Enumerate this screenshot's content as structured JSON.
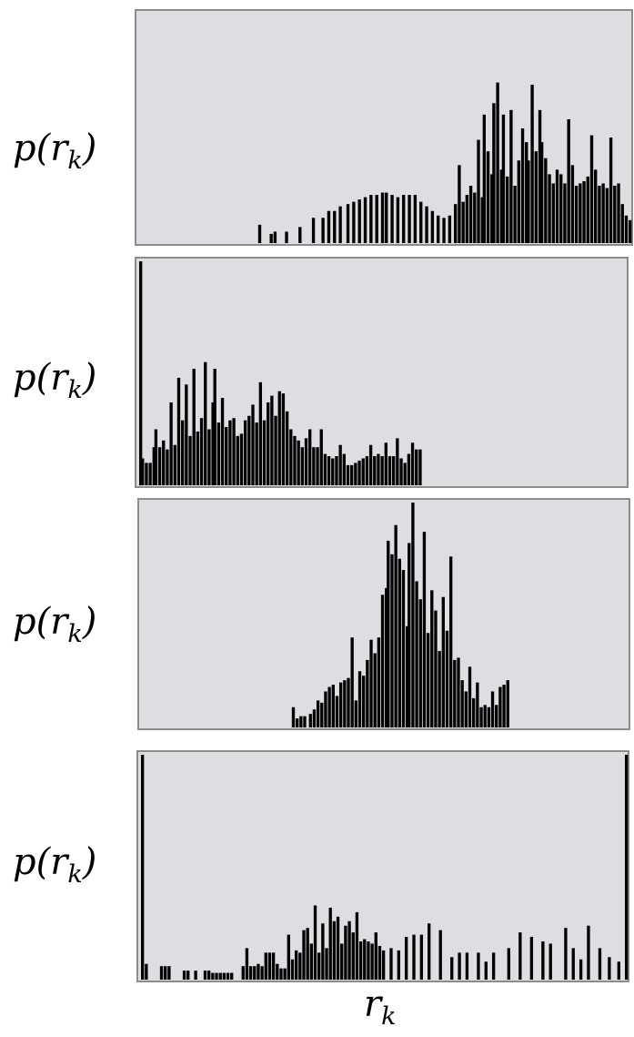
{
  "chart_data": [
    {
      "type": "bar",
      "ylabel": "p(r_k)",
      "xlabel": "",
      "description_of_values": "relative bar heights, 0-1 scale, indexed by intensity level r_k (0-255)",
      "bars": [
        [
          62,
          0.08
        ],
        [
          68,
          0.04
        ],
        [
          70,
          0.05
        ],
        [
          76,
          0.05
        ],
        [
          83,
          0.07
        ],
        [
          90,
          0.11
        ],
        [
          95,
          0.11
        ],
        [
          98,
          0.14
        ],
        [
          101,
          0.14
        ],
        [
          104,
          0.16
        ],
        [
          108,
          0.17
        ],
        [
          111,
          0.18
        ],
        [
          114,
          0.19
        ],
        [
          117,
          0.2
        ],
        [
          120,
          0.21
        ],
        [
          123,
          0.21
        ],
        [
          126,
          0.22
        ],
        [
          128,
          0.22
        ],
        [
          131,
          0.21
        ],
        [
          134,
          0.2
        ],
        [
          137,
          0.21
        ],
        [
          140,
          0.21
        ],
        [
          143,
          0.21
        ],
        [
          146,
          0.18
        ],
        [
          149,
          0.16
        ],
        [
          152,
          0.14
        ],
        [
          155,
          0.12
        ],
        [
          158,
          0.11
        ],
        [
          161,
          0.12
        ],
        [
          164,
          0.17
        ],
        [
          166,
          0.34
        ],
        [
          168,
          0.18
        ],
        [
          170,
          0.21
        ],
        [
          172,
          0.25
        ],
        [
          174,
          0.22
        ],
        [
          176,
          0.45
        ],
        [
          178,
          0.2
        ],
        [
          179,
          0.56
        ],
        [
          181,
          0.4
        ],
        [
          183,
          0.3
        ],
        [
          184,
          0.61
        ],
        [
          186,
          0.7
        ],
        [
          188,
          0.32
        ],
        [
          189,
          0.56
        ],
        [
          191,
          0.29
        ],
        [
          193,
          0.58
        ],
        [
          195,
          0.25
        ],
        [
          197,
          0.36
        ],
        [
          199,
          0.5
        ],
        [
          201,
          0.44
        ],
        [
          202,
          0.36
        ],
        [
          204,
          0.69
        ],
        [
          206,
          0.4
        ],
        [
          208,
          0.58
        ],
        [
          209,
          0.44
        ],
        [
          211,
          0.37
        ],
        [
          213,
          0.3
        ],
        [
          215,
          0.26
        ],
        [
          217,
          0.32
        ],
        [
          219,
          0.3
        ],
        [
          221,
          0.26
        ],
        [
          223,
          0.54
        ],
        [
          225,
          0.34
        ],
        [
          227,
          0.25
        ],
        [
          229,
          0.26
        ],
        [
          231,
          0.27
        ],
        [
          233,
          0.29
        ],
        [
          235,
          0.47
        ],
        [
          237,
          0.32
        ],
        [
          239,
          0.25
        ],
        [
          241,
          0.26
        ],
        [
          243,
          0.24
        ],
        [
          245,
          0.46
        ],
        [
          247,
          0.25
        ],
        [
          249,
          0.26
        ],
        [
          251,
          0.17
        ],
        [
          253,
          0.12
        ],
        [
          255,
          0.1
        ]
      ]
    },
    {
      "type": "bar",
      "ylabel": "p(r_k)",
      "xlabel": "",
      "description_of_values": "relative bar heights, 0-1 scale, indexed by intensity level r_k (0-255)",
      "bars": [
        [
          0,
          1.0
        ],
        [
          1,
          0.12
        ],
        [
          3,
          0.1
        ],
        [
          5,
          0.1
        ],
        [
          7,
          0.17
        ],
        [
          8,
          0.25
        ],
        [
          10,
          0.17
        ],
        [
          12,
          0.2
        ],
        [
          14,
          0.16
        ],
        [
          16,
          0.37
        ],
        [
          18,
          0.18
        ],
        [
          20,
          0.48
        ],
        [
          22,
          0.29
        ],
        [
          24,
          0.45
        ],
        [
          26,
          0.22
        ],
        [
          28,
          0.52
        ],
        [
          30,
          0.24
        ],
        [
          32,
          0.3
        ],
        [
          34,
          0.55
        ],
        [
          36,
          0.25
        ],
        [
          38,
          0.37
        ],
        [
          39,
          0.52
        ],
        [
          41,
          0.28
        ],
        [
          43,
          0.39
        ],
        [
          45,
          0.26
        ],
        [
          47,
          0.29
        ],
        [
          49,
          0.3
        ],
        [
          51,
          0.22
        ],
        [
          53,
          0.23
        ],
        [
          55,
          0.29
        ],
        [
          57,
          0.31
        ],
        [
          59,
          0.36
        ],
        [
          61,
          0.28
        ],
        [
          63,
          0.46
        ],
        [
          65,
          0.29
        ],
        [
          67,
          0.37
        ],
        [
          69,
          0.4
        ],
        [
          71,
          0.31
        ],
        [
          73,
          0.42
        ],
        [
          75,
          0.41
        ],
        [
          77,
          0.33
        ],
        [
          79,
          0.25
        ],
        [
          81,
          0.22
        ],
        [
          83,
          0.2
        ],
        [
          85,
          0.17
        ],
        [
          87,
          0.21
        ],
        [
          89,
          0.25
        ],
        [
          91,
          0.17
        ],
        [
          93,
          0.17
        ],
        [
          95,
          0.25
        ],
        [
          97,
          0.14
        ],
        [
          99,
          0.13
        ],
        [
          101,
          0.12
        ],
        [
          103,
          0.13
        ],
        [
          105,
          0.18
        ],
        [
          107,
          0.14
        ],
        [
          109,
          0.09
        ],
        [
          111,
          0.09
        ],
        [
          113,
          0.1
        ],
        [
          115,
          0.11
        ],
        [
          117,
          0.12
        ],
        [
          119,
          0.13
        ],
        [
          121,
          0.18
        ],
        [
          123,
          0.13
        ],
        [
          125,
          0.14
        ],
        [
          127,
          0.13
        ],
        [
          129,
          0.19
        ],
        [
          131,
          0.13
        ],
        [
          133,
          0.13
        ],
        [
          135,
          0.21
        ],
        [
          137,
          0.12
        ],
        [
          139,
          0.1
        ],
        [
          141,
          0.14
        ],
        [
          143,
          0.19
        ],
        [
          145,
          0.16
        ],
        [
          147,
          0.16
        ]
      ]
    },
    {
      "type": "bar",
      "ylabel": "p(r_k)",
      "xlabel": "",
      "description_of_values": "relative bar heights, 0-1 scale, indexed by intensity level r_k (0-255)",
      "bars": [
        [
          79,
          0.09
        ],
        [
          81,
          0.04
        ],
        [
          83,
          0.05
        ],
        [
          85,
          0.05
        ],
        [
          88,
          0.06
        ],
        [
          90,
          0.08
        ],
        [
          92,
          0.12
        ],
        [
          94,
          0.11
        ],
        [
          96,
          0.16
        ],
        [
          98,
          0.18
        ],
        [
          100,
          0.19
        ],
        [
          102,
          0.14
        ],
        [
          104,
          0.2
        ],
        [
          106,
          0.21
        ],
        [
          108,
          0.22
        ],
        [
          110,
          0.4
        ],
        [
          112,
          0.12
        ],
        [
          114,
          0.25
        ],
        [
          116,
          0.23
        ],
        [
          118,
          0.3
        ],
        [
          120,
          0.39
        ],
        [
          122,
          0.33
        ],
        [
          124,
          0.4
        ],
        [
          126,
          0.59
        ],
        [
          128,
          0.62
        ],
        [
          129,
          0.83
        ],
        [
          131,
          0.77
        ],
        [
          133,
          0.9
        ],
        [
          135,
          0.75
        ],
        [
          137,
          0.7
        ],
        [
          139,
          0.45
        ],
        [
          140,
          0.82
        ],
        [
          142,
          1.0
        ],
        [
          144,
          0.65
        ],
        [
          146,
          0.57
        ],
        [
          148,
          0.87
        ],
        [
          150,
          0.42
        ],
        [
          152,
          0.61
        ],
        [
          154,
          0.52
        ],
        [
          156,
          0.34
        ],
        [
          158,
          0.58
        ],
        [
          160,
          0.43
        ],
        [
          162,
          0.76
        ],
        [
          164,
          0.3
        ],
        [
          166,
          0.31
        ],
        [
          168,
          0.21
        ],
        [
          170,
          0.16
        ],
        [
          172,
          0.27
        ],
        [
          174,
          0.13
        ],
        [
          176,
          0.2
        ],
        [
          178,
          0.09
        ],
        [
          180,
          0.1
        ],
        [
          182,
          0.09
        ],
        [
          184,
          0.16
        ],
        [
          186,
          0.1
        ],
        [
          188,
          0.18
        ],
        [
          190,
          0.19
        ],
        [
          192,
          0.21
        ]
      ]
    },
    {
      "type": "bar",
      "ylabel": "p(r_k)",
      "xlabel": "r_k",
      "description_of_values": "relative bar heights, 0-1 scale, indexed by intensity level r_k (0-255)",
      "bars": [
        [
          0,
          1.0
        ],
        [
          2,
          0.07
        ],
        [
          10,
          0.06
        ],
        [
          12,
          0.06
        ],
        [
          14,
          0.06
        ],
        [
          22,
          0.04
        ],
        [
          24,
          0.04
        ],
        [
          28,
          0.04
        ],
        [
          33,
          0.04
        ],
        [
          35,
          0.04
        ],
        [
          37,
          0.03
        ],
        [
          39,
          0.03
        ],
        [
          41,
          0.03
        ],
        [
          43,
          0.03
        ],
        [
          45,
          0.03
        ],
        [
          47,
          0.03
        ],
        [
          53,
          0.06
        ],
        [
          55,
          0.14
        ],
        [
          57,
          0.06
        ],
        [
          59,
          0.06
        ],
        [
          61,
          0.07
        ],
        [
          63,
          0.06
        ],
        [
          65,
          0.12
        ],
        [
          67,
          0.12
        ],
        [
          69,
          0.12
        ],
        [
          71,
          0.07
        ],
        [
          73,
          0.05
        ],
        [
          75,
          0.05
        ],
        [
          77,
          0.2
        ],
        [
          79,
          0.09
        ],
        [
          81,
          0.13
        ],
        [
          83,
          0.12
        ],
        [
          85,
          0.22
        ],
        [
          87,
          0.23
        ],
        [
          89,
          0.16
        ],
        [
          91,
          0.33
        ],
        [
          93,
          0.12
        ],
        [
          95,
          0.25
        ],
        [
          97,
          0.14
        ],
        [
          99,
          0.32
        ],
        [
          101,
          0.26
        ],
        [
          103,
          0.28
        ],
        [
          105,
          0.16
        ],
        [
          107,
          0.24
        ],
        [
          109,
          0.26
        ],
        [
          111,
          0.21
        ],
        [
          113,
          0.3
        ],
        [
          115,
          0.17
        ],
        [
          117,
          0.18
        ],
        [
          119,
          0.17
        ],
        [
          121,
          0.16
        ],
        [
          123,
          0.21
        ],
        [
          125,
          0.15
        ],
        [
          127,
          0.13
        ],
        [
          131,
          0.14
        ],
        [
          135,
          0.13
        ],
        [
          139,
          0.19
        ],
        [
          143,
          0.2
        ],
        [
          147,
          0.2
        ],
        [
          151,
          0.25
        ],
        [
          157,
          0.22
        ],
        [
          163,
          0.1
        ],
        [
          167,
          0.12
        ],
        [
          171,
          0.12
        ],
        [
          177,
          0.12
        ],
        [
          181,
          0.08
        ],
        [
          185,
          0.12
        ],
        [
          193,
          0.14
        ],
        [
          199,
          0.21
        ],
        [
          205,
          0.19
        ],
        [
          211,
          0.17
        ],
        [
          215,
          0.16
        ],
        [
          223,
          0.23
        ],
        [
          227,
          0.14
        ],
        [
          231,
          0.09
        ],
        [
          235,
          0.24
        ],
        [
          241,
          0.14
        ],
        [
          246,
          0.1
        ],
        [
          251,
          0.08
        ],
        [
          255,
          1.0
        ]
      ]
    }
  ]
}
